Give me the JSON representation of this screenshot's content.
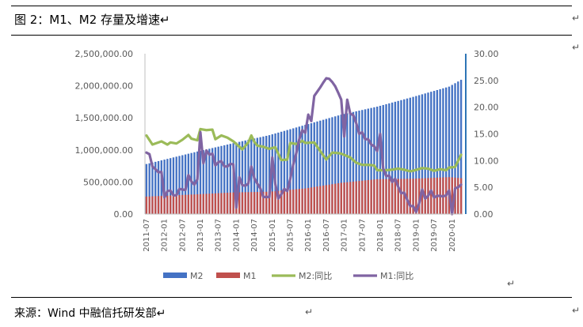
{
  "figure": {
    "title": "图 2：M1、M2 存量及增速↵",
    "source": "来源：Wind 中融信托研发部↵",
    "return_mark": "↵"
  },
  "colors": {
    "m2_bar": "#4472C4",
    "m1_bar": "#C0504D",
    "m2_yoy_line": "#9BBB59",
    "m1_yoy_line": "#8064A2",
    "right_axis": "#2E75B6"
  },
  "chart_data": {
    "type": "bar",
    "title": "",
    "x_start": "2011-07",
    "x_end": "2020-04",
    "x_tick_labels": [
      "2011-07",
      "2012-01",
      "2012-07",
      "2013-01",
      "2013-07",
      "2014-01",
      "2014-07",
      "2015-01",
      "2015-07",
      "2016-01",
      "2016-07",
      "2017-01",
      "2017-07",
      "2018-01",
      "2018-07",
      "2019-01",
      "2019-07",
      "2020-01"
    ],
    "left_axis": {
      "ylim": [
        0,
        2500000
      ],
      "ticks": [
        "0.00",
        "500,000.00",
        "1,000,000.00",
        "1,500,000.00",
        "2,000,000.00",
        "2,500,000.00"
      ]
    },
    "right_axis": {
      "ylim": [
        0,
        30
      ],
      "ticks": [
        "0.00",
        "5.00",
        "10.00",
        "15.00",
        "20.00",
        "25.00",
        "30.00"
      ]
    },
    "bar_series": [
      {
        "name": "M2",
        "axis": "left",
        "anchors": [
          [
            "2011-07",
            780000
          ],
          [
            "2012-12",
            975000
          ],
          [
            "2013-12",
            1105000
          ],
          [
            "2014-12",
            1230000
          ],
          [
            "2015-12",
            1390000
          ],
          [
            "2016-12",
            1550000
          ],
          [
            "2017-12",
            1675000
          ],
          [
            "2018-12",
            1827000
          ],
          [
            "2019-12",
            1987000
          ],
          [
            "2020-04",
            2093000
          ]
        ]
      },
      {
        "name": "M1",
        "axis": "left",
        "anchors": [
          [
            "2011-07",
            272000
          ],
          [
            "2012-12",
            308000
          ],
          [
            "2013-12",
            337000
          ],
          [
            "2014-12",
            348000
          ],
          [
            "2015-12",
            400000
          ],
          [
            "2016-12",
            487000
          ],
          [
            "2017-12",
            544000
          ],
          [
            "2018-12",
            551000
          ],
          [
            "2019-12",
            576000
          ],
          [
            "2020-04",
            559000
          ]
        ]
      }
    ],
    "line_series": [
      {
        "name": "M2:同比",
        "axis": "right",
        "anchors": [
          [
            "2011-07",
            14.7
          ],
          [
            "2011-09",
            13.0
          ],
          [
            "2011-12",
            13.6
          ],
          [
            "2012-02",
            13.0
          ],
          [
            "2012-03",
            13.4
          ],
          [
            "2012-05",
            13.2
          ],
          [
            "2012-07",
            13.9
          ],
          [
            "2012-09",
            14.8
          ],
          [
            "2012-10",
            14.1
          ],
          [
            "2012-12",
            13.8
          ],
          [
            "2013-01",
            15.9
          ],
          [
            "2013-03",
            15.7
          ],
          [
            "2013-05",
            15.8
          ],
          [
            "2013-06",
            14.0
          ],
          [
            "2013-08",
            14.7
          ],
          [
            "2013-10",
            14.3
          ],
          [
            "2013-12",
            13.6
          ],
          [
            "2014-03",
            12.1
          ],
          [
            "2014-05",
            13.4
          ],
          [
            "2014-06",
            14.7
          ],
          [
            "2014-07",
            13.5
          ],
          [
            "2014-08",
            12.8
          ],
          [
            "2014-10",
            12.6
          ],
          [
            "2014-12",
            12.2
          ],
          [
            "2015-02",
            12.5
          ],
          [
            "2015-04",
            10.1
          ],
          [
            "2015-06",
            10.2
          ],
          [
            "2015-07",
            13.3
          ],
          [
            "2015-09",
            13.1
          ],
          [
            "2015-11",
            13.7
          ],
          [
            "2015-12",
            13.3
          ],
          [
            "2016-03",
            13.4
          ],
          [
            "2016-05",
            11.8
          ],
          [
            "2016-07",
            10.2
          ],
          [
            "2016-09",
            11.5
          ],
          [
            "2016-11",
            11.4
          ],
          [
            "2016-12",
            11.3
          ],
          [
            "2017-03",
            10.6
          ],
          [
            "2017-05",
            9.6
          ],
          [
            "2017-07",
            9.2
          ],
          [
            "2017-09",
            9.2
          ],
          [
            "2017-11",
            9.1
          ],
          [
            "2017-12",
            8.2
          ],
          [
            "2018-03",
            8.2
          ],
          [
            "2018-05",
            8.3
          ],
          [
            "2018-07",
            8.5
          ],
          [
            "2018-09",
            8.3
          ],
          [
            "2018-11",
            8.0
          ],
          [
            "2018-12",
            8.1
          ],
          [
            "2019-03",
            8.6
          ],
          [
            "2019-05",
            8.5
          ],
          [
            "2019-07",
            8.1
          ],
          [
            "2019-09",
            8.4
          ],
          [
            "2019-11",
            8.2
          ],
          [
            "2019-12",
            8.7
          ],
          [
            "2020-02",
            8.8
          ],
          [
            "2020-04",
            11.1
          ]
        ]
      },
      {
        "name": "M1:同比",
        "axis": "right",
        "anchors": [
          [
            "2011-07",
            11.5
          ],
          [
            "2011-08",
            11.2
          ],
          [
            "2011-09",
            8.9
          ],
          [
            "2011-10",
            8.4
          ],
          [
            "2011-11",
            7.8
          ],
          [
            "2011-12",
            7.9
          ],
          [
            "2012-01",
            3.1
          ],
          [
            "2012-02",
            4.3
          ],
          [
            "2012-03",
            4.4
          ],
          [
            "2012-04",
            3.5
          ],
          [
            "2012-05",
            3.5
          ],
          [
            "2012-06",
            4.7
          ],
          [
            "2012-07",
            4.6
          ],
          [
            "2012-08",
            4.5
          ],
          [
            "2012-09",
            7.3
          ],
          [
            "2012-10",
            6.1
          ],
          [
            "2012-11",
            5.5
          ],
          [
            "2012-12",
            6.5
          ],
          [
            "2013-01",
            15.3
          ],
          [
            "2013-02",
            9.5
          ],
          [
            "2013-03",
            11.9
          ],
          [
            "2013-04",
            11.1
          ],
          [
            "2013-05",
            11.3
          ],
          [
            "2013-06",
            9.1
          ],
          [
            "2013-07",
            9.7
          ],
          [
            "2013-08",
            9.9
          ],
          [
            "2013-09",
            8.9
          ],
          [
            "2013-10",
            8.9
          ],
          [
            "2013-11",
            9.4
          ],
          [
            "2013-12",
            9.3
          ],
          [
            "2014-01",
            1.2
          ],
          [
            "2014-02",
            6.9
          ],
          [
            "2014-03",
            5.4
          ],
          [
            "2014-04",
            5.3
          ],
          [
            "2014-05",
            5.7
          ],
          [
            "2014-06",
            8.9
          ],
          [
            "2014-07",
            6.7
          ],
          [
            "2014-08",
            5.7
          ],
          [
            "2014-09",
            4.8
          ],
          [
            "2014-10",
            3.2
          ],
          [
            "2014-11",
            3.2
          ],
          [
            "2014-12",
            3.2
          ],
          [
            "2015-01",
            10.6
          ],
          [
            "2015-02",
            5.6
          ],
          [
            "2015-03",
            2.9
          ],
          [
            "2015-04",
            3.7
          ],
          [
            "2015-05",
            4.7
          ],
          [
            "2015-06",
            4.3
          ],
          [
            "2015-07",
            6.6
          ],
          [
            "2015-08",
            9.3
          ],
          [
            "2015-09",
            11.4
          ],
          [
            "2015-10",
            14.0
          ],
          [
            "2015-11",
            15.7
          ],
          [
            "2015-12",
            15.2
          ],
          [
            "2016-01",
            18.6
          ],
          [
            "2016-02",
            17.4
          ],
          [
            "2016-03",
            22.1
          ],
          [
            "2016-04",
            22.9
          ],
          [
            "2016-05",
            23.7
          ],
          [
            "2016-06",
            24.6
          ],
          [
            "2016-07",
            25.4
          ],
          [
            "2016-08",
            25.3
          ],
          [
            "2016-09",
            24.7
          ],
          [
            "2016-10",
            23.9
          ],
          [
            "2016-11",
            22.7
          ],
          [
            "2016-12",
            21.4
          ],
          [
            "2017-01",
            14.5
          ],
          [
            "2017-02",
            21.4
          ],
          [
            "2017-03",
            18.8
          ],
          [
            "2017-04",
            18.5
          ],
          [
            "2017-05",
            17.0
          ],
          [
            "2017-06",
            15.0
          ],
          [
            "2017-07",
            15.3
          ],
          [
            "2017-08",
            14.0
          ],
          [
            "2017-09",
            14.0
          ],
          [
            "2017-10",
            13.0
          ],
          [
            "2017-11",
            12.7
          ],
          [
            "2017-12",
            11.8
          ],
          [
            "2018-01",
            15.0
          ],
          [
            "2018-02",
            8.5
          ],
          [
            "2018-03",
            7.1
          ],
          [
            "2018-04",
            7.2
          ],
          [
            "2018-05",
            6.0
          ],
          [
            "2018-06",
            6.6
          ],
          [
            "2018-07",
            5.1
          ],
          [
            "2018-08",
            3.9
          ],
          [
            "2018-09",
            4.0
          ],
          [
            "2018-10",
            2.7
          ],
          [
            "2018-11",
            1.5
          ],
          [
            "2018-12",
            1.5
          ],
          [
            "2019-01",
            0.4
          ],
          [
            "2019-02",
            2.0
          ],
          [
            "2019-03",
            4.6
          ],
          [
            "2019-04",
            2.9
          ],
          [
            "2019-05",
            3.4
          ],
          [
            "2019-06",
            4.4
          ],
          [
            "2019-07",
            3.1
          ],
          [
            "2019-08",
            3.4
          ],
          [
            "2019-09",
            3.4
          ],
          [
            "2019-10",
            3.3
          ],
          [
            "2019-11",
            3.5
          ],
          [
            "2019-12",
            4.4
          ],
          [
            "2020-01",
            0.0
          ],
          [
            "2020-02",
            4.8
          ],
          [
            "2020-03",
            5.0
          ],
          [
            "2020-04",
            5.5
          ]
        ]
      }
    ],
    "legend": {
      "placement": "bottom",
      "entries": [
        "M2",
        "M1",
        "M2:同比",
        "M1:同比"
      ]
    },
    "grid": false
  }
}
